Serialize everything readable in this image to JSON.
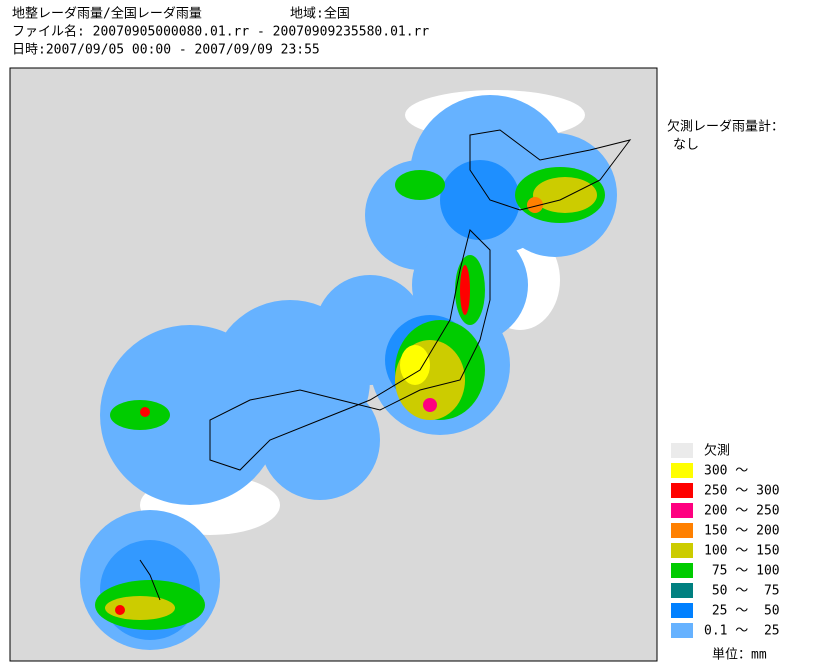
{
  "header": {
    "title": "地整レーダ雨量/全国レーダ雨量",
    "region": "地域:全国",
    "file": "ファイル名: 20070905000080.01.rr - 20070909235580.01.rr",
    "datetime": "日時:2007/09/05 00:00 - 2007/09/09 23:55"
  },
  "missing_gauges": {
    "label": "欠測レーダ雨量計：",
    "value": "なし"
  },
  "legend": {
    "items": [
      {
        "label": "欠測",
        "color": "#ebebeb"
      },
      {
        "label": "300 ～",
        "color": "#ffff00"
      },
      {
        "label": "250 ～ 300",
        "color": "#ff0000"
      },
      {
        "label": "200 ～ 250",
        "color": "#ff0080"
      },
      {
        "label": "150 ～ 200",
        "color": "#ff8000"
      },
      {
        "label": "100 ～ 150",
        "color": "#cccc00"
      },
      {
        "label": " 75 ～ 100",
        "color": "#00cc00"
      },
      {
        "label": " 50 ～  75",
        "color": "#008080"
      },
      {
        "label": " 25 ～  50",
        "color": "#0080ff"
      },
      {
        "label": "0.1 ～  25",
        "color": "#66b2ff"
      }
    ],
    "unit": "単位：mm"
  }
}
